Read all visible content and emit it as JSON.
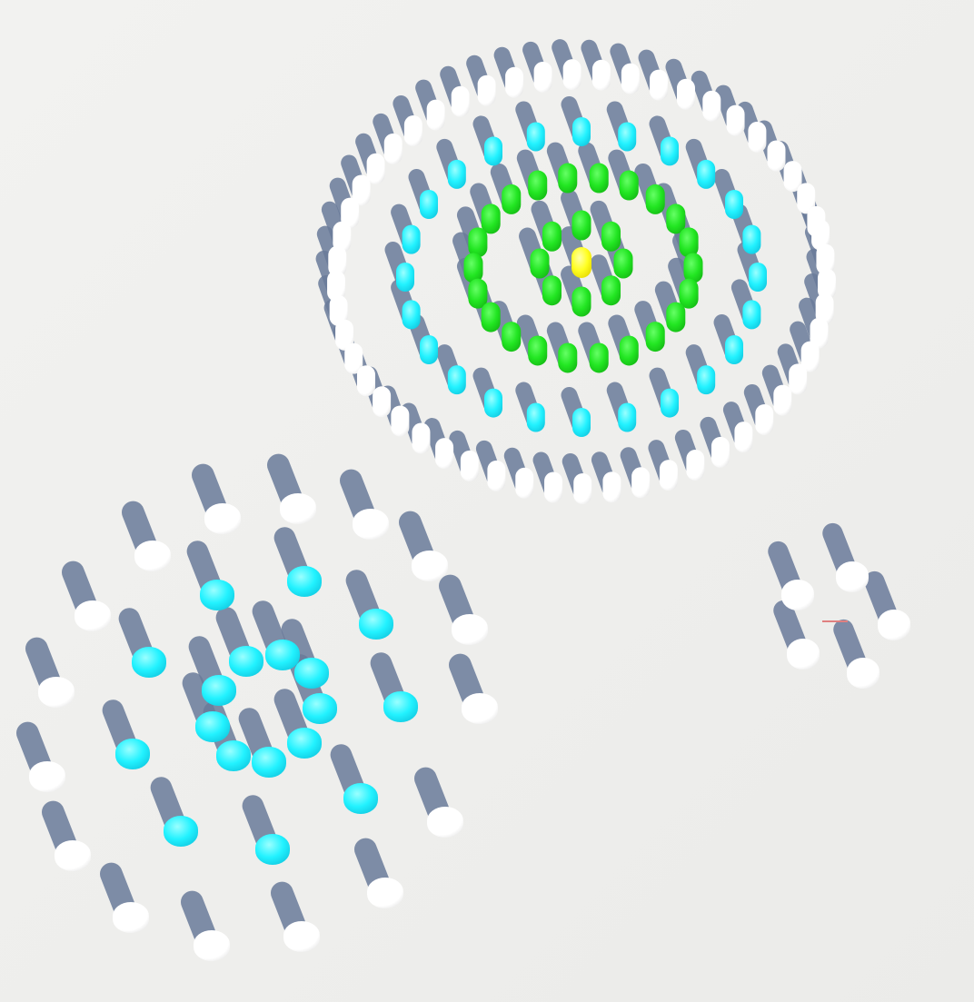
{
  "colors": {
    "background": "#f0f0ee",
    "white": "#ffffff",
    "cyan": "#22f2ff",
    "green": "#22ee22",
    "yellow": "#ffff22",
    "shadow": "#6a7b9a",
    "crosshair": "#e08080"
  },
  "scene": {
    "groups": [
      {
        "name": "large-ring-formation",
        "ring_counts": {
          "white": 53,
          "cyan": 24,
          "green_outer": 22,
          "green_inner": 8,
          "yellow": 1
        }
      },
      {
        "name": "mid-formation",
        "counts": {
          "white": 20,
          "cyan": 18
        }
      },
      {
        "name": "small-formation",
        "counts": {
          "white": 5
        }
      }
    ],
    "crosshair": "center-marker"
  }
}
